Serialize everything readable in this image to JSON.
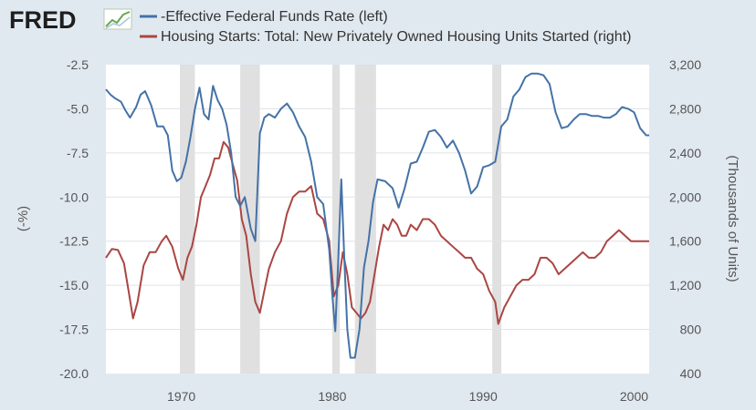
{
  "brand": {
    "name": "FRED",
    "icon": "fred-trend-icon"
  },
  "colors": {
    "background": "#e1e9f0",
    "plot": "#ffffff",
    "recession": "#e0e0e0",
    "series_left": "#4572a7",
    "series_right": "#aa4643",
    "grid": "#dde3e8"
  },
  "chart_data": {
    "type": "line",
    "xlim": [
      1965,
      2001
    ],
    "x_ticks": [
      "1970",
      "1980",
      "1990",
      "2000"
    ],
    "y_left": {
      "label": "(-%)",
      "lim": [
        -20.0,
        -2.5
      ],
      "ticks": [
        "-2.5",
        "-5.0",
        "-7.5",
        "-10.0",
        "-12.5",
        "-15.0",
        "-17.5",
        "-20.0"
      ]
    },
    "y_right": {
      "label": "(Thousands of Units)",
      "lim": [
        400,
        3200
      ],
      "ticks": [
        "3,200",
        "2,800",
        "2,400",
        "2,000",
        "1,600",
        "1,200",
        "800",
        "400"
      ]
    },
    "recessions": [
      [
        1969.9,
        1970.9
      ],
      [
        1973.9,
        1975.2
      ],
      [
        1980.0,
        1980.5
      ],
      [
        1981.5,
        1982.9
      ],
      [
        1990.6,
        1991.2
      ]
    ],
    "series": [
      {
        "name": "-Effective Federal Funds Rate (left)",
        "axis": "left",
        "x": [
          1965.0,
          1965.3,
          1965.6,
          1966.0,
          1966.3,
          1966.6,
          1967.0,
          1967.3,
          1967.6,
          1968.0,
          1968.4,
          1968.8,
          1969.1,
          1969.4,
          1969.7,
          1970.0,
          1970.3,
          1970.6,
          1970.9,
          1971.2,
          1971.5,
          1971.8,
          1972.1,
          1972.4,
          1972.7,
          1973.0,
          1973.3,
          1973.6,
          1973.9,
          1974.2,
          1974.6,
          1974.9,
          1975.2,
          1975.5,
          1975.8,
          1976.2,
          1976.6,
          1977.0,
          1977.4,
          1977.8,
          1978.2,
          1978.6,
          1979.0,
          1979.4,
          1979.8,
          1980.0,
          1980.2,
          1980.4,
          1980.6,
          1980.8,
          1981.0,
          1981.2,
          1981.5,
          1981.8,
          1982.1,
          1982.4,
          1982.7,
          1983.0,
          1983.5,
          1984.0,
          1984.4,
          1984.8,
          1985.2,
          1985.6,
          1986.0,
          1986.4,
          1986.8,
          1987.2,
          1987.6,
          1988.0,
          1988.4,
          1988.8,
          1989.2,
          1989.6,
          1990.0,
          1990.4,
          1990.8,
          1991.2,
          1991.6,
          1992.0,
          1992.4,
          1992.8,
          1993.2,
          1993.6,
          1994.0,
          1994.4,
          1994.8,
          1995.2,
          1995.6,
          1996.0,
          1996.4,
          1996.8,
          1997.2,
          1997.6,
          1998.0,
          1998.4,
          1998.8,
          1999.2,
          1999.6,
          2000.0,
          2000.4,
          2000.8,
          2001.0
        ],
        "values": [
          -3.9,
          -4.2,
          -4.4,
          -4.6,
          -5.1,
          -5.5,
          -4.9,
          -4.2,
          -4.0,
          -4.8,
          -6.0,
          -6.0,
          -6.5,
          -8.5,
          -9.1,
          -8.9,
          -8.0,
          -6.6,
          -5.0,
          -3.8,
          -5.3,
          -5.6,
          -3.7,
          -4.5,
          -5.0,
          -5.9,
          -7.5,
          -10.0,
          -10.5,
          -10.0,
          -11.8,
          -12.5,
          -6.4,
          -5.5,
          -5.3,
          -5.5,
          -5.0,
          -4.7,
          -5.2,
          -6.0,
          -6.6,
          -8.0,
          -10.0,
          -10.4,
          -13.0,
          -15.5,
          -17.6,
          -13.5,
          -9.0,
          -13.5,
          -17.5,
          -19.1,
          -19.1,
          -17.5,
          -14.0,
          -12.5,
          -10.3,
          -9.0,
          -9.1,
          -9.5,
          -10.6,
          -9.5,
          -8.1,
          -8.0,
          -7.2,
          -6.3,
          -6.2,
          -6.6,
          -7.2,
          -6.8,
          -7.5,
          -8.5,
          -9.8,
          -9.4,
          -8.3,
          -8.2,
          -8.0,
          -6.0,
          -5.6,
          -4.3,
          -3.9,
          -3.2,
          -3.0,
          -3.0,
          -3.1,
          -3.6,
          -5.2,
          -6.1,
          -6.0,
          -5.6,
          -5.3,
          -5.3,
          -5.4,
          -5.4,
          -5.5,
          -5.5,
          -5.3,
          -4.9,
          -5.0,
          -5.2,
          -6.1,
          -6.5,
          -6.5
        ]
      },
      {
        "name": "Housing Starts: Total: New Privately Owned Housing Units Started (right)",
        "axis": "right",
        "x": [
          1965.0,
          1965.4,
          1965.8,
          1966.2,
          1966.5,
          1966.8,
          1967.1,
          1967.5,
          1967.9,
          1968.3,
          1968.7,
          1969.0,
          1969.4,
          1969.8,
          1970.1,
          1970.4,
          1970.7,
          1971.0,
          1971.3,
          1971.6,
          1971.9,
          1972.2,
          1972.5,
          1972.8,
          1973.1,
          1973.4,
          1973.7,
          1974.0,
          1974.3,
          1974.6,
          1974.9,
          1975.2,
          1975.5,
          1975.8,
          1976.2,
          1976.6,
          1977.0,
          1977.4,
          1977.8,
          1978.2,
          1978.6,
          1979.0,
          1979.4,
          1979.8,
          1980.1,
          1980.4,
          1980.7,
          1981.0,
          1981.3,
          1981.6,
          1981.9,
          1982.2,
          1982.5,
          1982.8,
          1983.1,
          1983.4,
          1983.7,
          1984.0,
          1984.3,
          1984.6,
          1984.9,
          1985.2,
          1985.6,
          1986.0,
          1986.4,
          1986.8,
          1987.2,
          1987.6,
          1988.0,
          1988.4,
          1988.8,
          1989.2,
          1989.6,
          1990.0,
          1990.4,
          1990.8,
          1991.0,
          1991.4,
          1991.8,
          1992.2,
          1992.6,
          1993.0,
          1993.4,
          1993.8,
          1994.2,
          1994.6,
          1995.0,
          1995.4,
          1995.8,
          1996.2,
          1996.6,
          1997.0,
          1997.4,
          1997.8,
          1998.2,
          1998.6,
          1999.0,
          1999.4,
          1999.8,
          2000.2,
          2000.6,
          2001.0
        ],
        "values": [
          1450,
          1530,
          1520,
          1400,
          1150,
          900,
          1050,
          1380,
          1500,
          1500,
          1600,
          1650,
          1550,
          1350,
          1250,
          1450,
          1550,
          1750,
          2000,
          2100,
          2200,
          2350,
          2350,
          2500,
          2450,
          2300,
          2150,
          1800,
          1650,
          1300,
          1050,
          950,
          1150,
          1350,
          1500,
          1600,
          1850,
          2000,
          2050,
          2050,
          2100,
          1850,
          1800,
          1600,
          1100,
          1200,
          1500,
          1300,
          1000,
          950,
          900,
          950,
          1050,
          1300,
          1550,
          1750,
          1700,
          1800,
          1750,
          1650,
          1650,
          1750,
          1700,
          1800,
          1800,
          1750,
          1650,
          1600,
          1550,
          1500,
          1450,
          1450,
          1350,
          1300,
          1150,
          1050,
          850,
          1000,
          1100,
          1200,
          1250,
          1250,
          1300,
          1450,
          1450,
          1400,
          1300,
          1350,
          1400,
          1450,
          1500,
          1450,
          1450,
          1500,
          1600,
          1650,
          1700,
          1650,
          1600,
          1600,
          1600,
          1600
        ]
      }
    ]
  }
}
